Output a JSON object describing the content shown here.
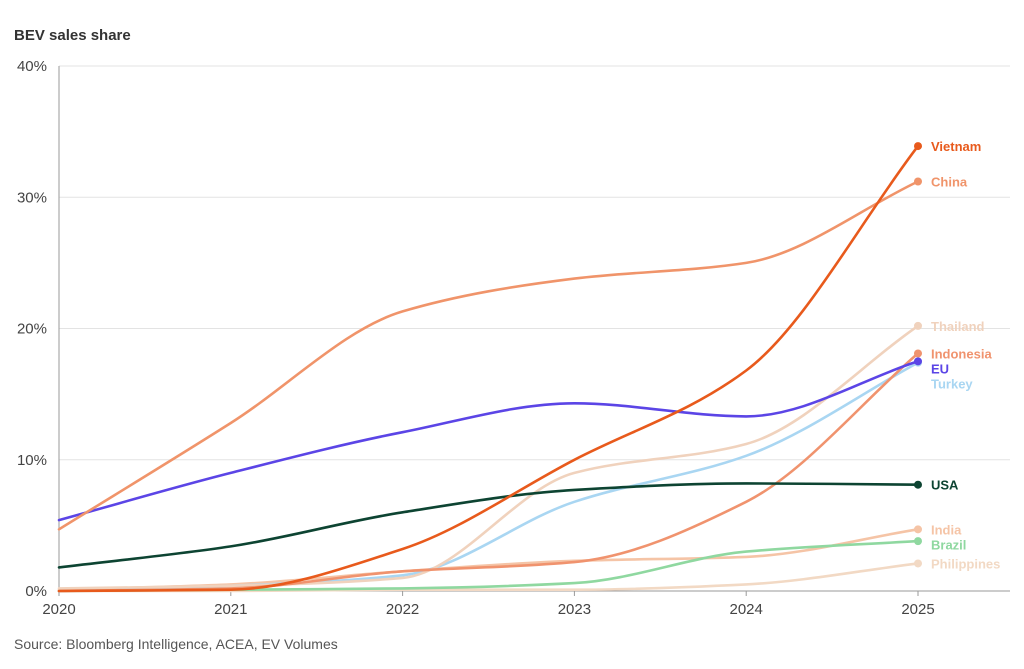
{
  "chart_data": {
    "type": "line",
    "ylabel": "BEV sales share",
    "source": "Source: Bloomberg Intelligence, ACEA, EV Volumes",
    "x": [
      2020,
      2021,
      2022,
      2023,
      2024,
      2025
    ],
    "xlim": [
      2020,
      2025
    ],
    "ylim": [
      0,
      40
    ],
    "yticks": [
      0,
      10,
      20,
      30,
      40
    ],
    "ytick_labels": [
      "0%",
      "10%",
      "20%",
      "30%",
      "40%"
    ],
    "xtick_labels": [
      "2020",
      "2021",
      "2022",
      "2023",
      "2024",
      "2025"
    ],
    "grid": "horizontal",
    "legend": "inline-right",
    "series": [
      {
        "name": "Philippines",
        "color": "#f2d9c4",
        "values": [
          0.0,
          0.0,
          0.1,
          0.1,
          0.5,
          2.1
        ]
      },
      {
        "name": "India",
        "color": "#f5c4a6",
        "values": [
          0.1,
          0.5,
          1.5,
          2.3,
          2.6,
          4.7
        ]
      },
      {
        "name": "Brazil",
        "color": "#8fd8a0",
        "values": [
          0.0,
          0.1,
          0.2,
          0.6,
          3.0,
          3.8
        ]
      },
      {
        "name": "Turkey",
        "color": "#a9d6f2",
        "values": [
          0.0,
          0.4,
          1.2,
          6.8,
          10.3,
          17.4
        ]
      },
      {
        "name": "Thailand",
        "color": "#f0d2bd",
        "values": [
          0.2,
          0.4,
          1.0,
          9.0,
          11.2,
          20.2
        ]
      },
      {
        "name": "Indonesia",
        "color": "#f0936e",
        "values": [
          0.0,
          0.2,
          1.5,
          2.2,
          6.8,
          18.1
        ]
      },
      {
        "name": "USA",
        "color": "#0d4432",
        "values": [
          1.8,
          3.4,
          6.0,
          7.7,
          8.2,
          8.1
        ]
      },
      {
        "name": "EU",
        "color": "#5b45e6",
        "values": [
          5.4,
          9.0,
          12.1,
          14.3,
          13.3,
          17.5
        ]
      },
      {
        "name": "China",
        "color": "#f0946a",
        "values": [
          4.7,
          12.8,
          21.3,
          23.8,
          25.0,
          31.2
        ]
      },
      {
        "name": "Vietnam",
        "color": "#e85a1c",
        "values": [
          0.0,
          0.1,
          3.2,
          10.0,
          16.8,
          33.9
        ]
      }
    ]
  }
}
